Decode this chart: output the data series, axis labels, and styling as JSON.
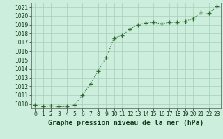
{
  "x": [
    0,
    1,
    2,
    3,
    4,
    5,
    6,
    7,
    8,
    9,
    10,
    11,
    12,
    13,
    14,
    15,
    16,
    17,
    18,
    19,
    20,
    21,
    22,
    23
  ],
  "y": [
    1009.9,
    1009.7,
    1009.8,
    1009.7,
    1009.7,
    1009.9,
    1011.0,
    1012.3,
    1013.8,
    1015.3,
    1017.5,
    1017.8,
    1018.5,
    1019.0,
    1019.2,
    1019.3,
    1019.1,
    1019.3,
    1019.3,
    1019.4,
    1019.7,
    1020.4,
    1020.3,
    1021.1
  ],
  "line_color": "#2d6a2d",
  "marker": "+",
  "marker_size": 4,
  "bg_color": "#cceedd",
  "grid_color": "#aaccbb",
  "xlabel": "Graphe pression niveau de la mer (hPa)",
  "ylim": [
    1009.5,
    1021.5
  ],
  "yticks": [
    1010,
    1011,
    1012,
    1013,
    1014,
    1015,
    1016,
    1017,
    1018,
    1019,
    1020,
    1021
  ],
  "xticks": [
    0,
    1,
    2,
    3,
    4,
    5,
    6,
    7,
    8,
    9,
    10,
    11,
    12,
    13,
    14,
    15,
    16,
    17,
    18,
    19,
    20,
    21,
    22,
    23
  ],
  "xlim": [
    -0.5,
    23.5
  ],
  "tick_fontsize": 5.5,
  "xlabel_fontsize": 7.0
}
